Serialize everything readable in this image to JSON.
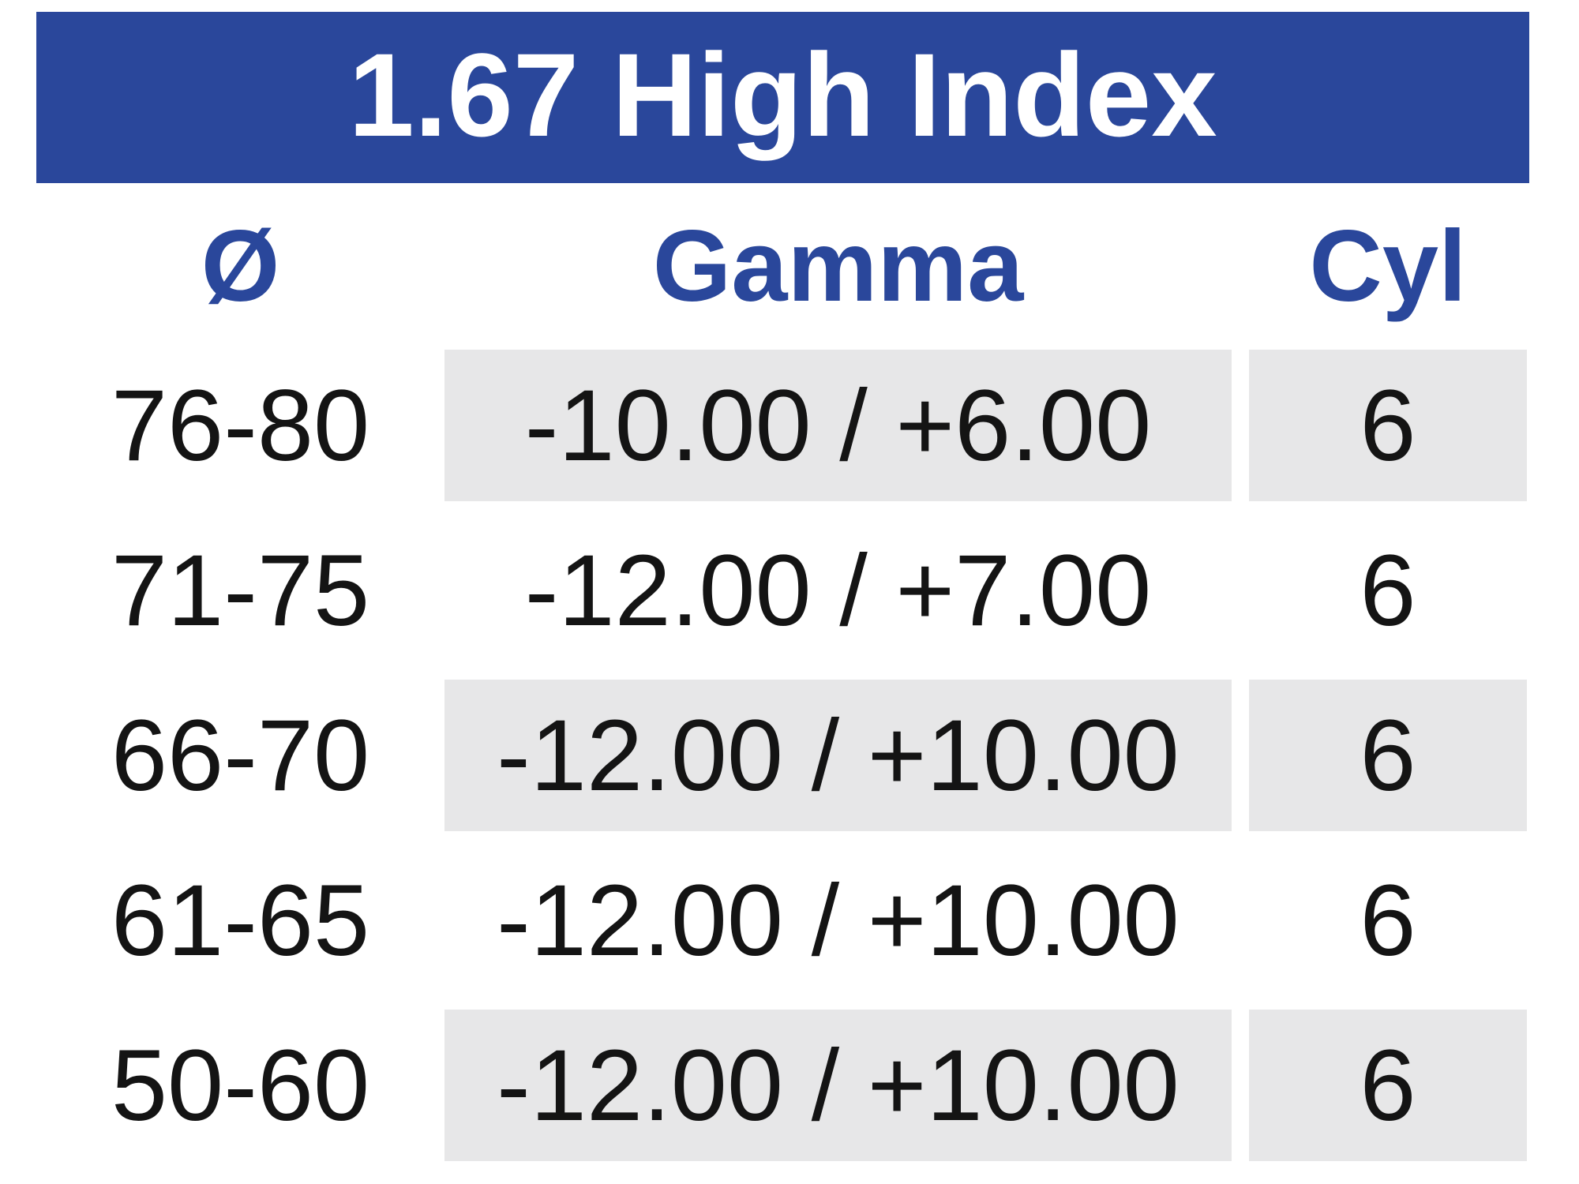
{
  "title": "1.67 High Index",
  "columns": [
    {
      "key": "diameter",
      "label": "Ø"
    },
    {
      "key": "gamma",
      "label": "Gamma"
    },
    {
      "key": "cyl",
      "label": "Cyl"
    }
  ],
  "rows": [
    {
      "diameter": "76-80",
      "gamma": "-10.00 / +6.00",
      "cyl": "6",
      "shaded": true
    },
    {
      "diameter": "71-75",
      "gamma": "-12.00 / +7.00",
      "cyl": "6",
      "shaded": false
    },
    {
      "diameter": "66-70",
      "gamma": "-12.00 / +10.00",
      "cyl": "6",
      "shaded": true
    },
    {
      "diameter": "61-65",
      "gamma": "-12.00 / +10.00",
      "cyl": "6",
      "shaded": false
    },
    {
      "diameter": "50-60",
      "gamma": "-12.00 / +10.00",
      "cyl": "6",
      "shaded": true
    }
  ],
  "colors": {
    "header_bg": "#2a479b",
    "header_text": "#ffffff",
    "column_header_text": "#2a479b",
    "shaded_cell_bg": "#e7e7e8",
    "body_text": "#141414",
    "page_bg": "#ffffff"
  }
}
